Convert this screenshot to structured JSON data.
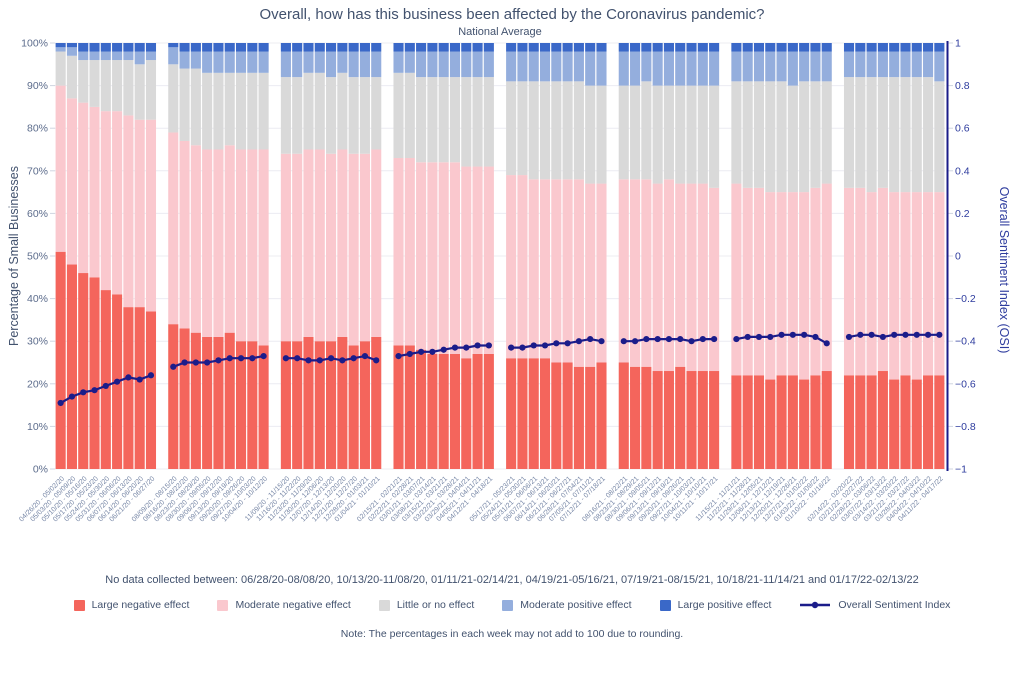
{
  "notes": {
    "no_data": "No data collected between: 06/28/20-08/08/20, 10/13/20-11/08/20, 01/11/21-02/14/21, 04/19/21-05/16/21, 07/19/21-08/15/21, 10/18/21-11/14/21 and 01/17/22-02/13/22",
    "rounding": "Note: The percentages in each week may not add to 100 due to rounding."
  },
  "chart_data": {
    "type": "bar",
    "stacked": true,
    "title": "Overall, how has this business been affected by the Coronavirus pandemic?",
    "subtitle": "National Average",
    "ylabel_left": "Percentage of Small Businesses",
    "ylabel_right": "Overall Sentiment Index (OSI)",
    "y_left": {
      "min": 0,
      "max": 100,
      "step": 10,
      "format": "percent"
    },
    "y_right": {
      "min": -1,
      "max": 1,
      "step": 0.2
    },
    "group_size": 9,
    "grid": true,
    "legend_position": "bottom",
    "categories": [
      "04/26/20 - 05/02/20",
      "05/03/20 - 05/09/20",
      "05/10/20 - 05/16/20",
      "05/17/20 - 05/23/20",
      "05/24/20 - 05/30/20",
      "05/31/20 - 06/06/20",
      "06/07/20 - 06/13/20",
      "06/14/20 - 06/20/20",
      "06/21/20 - 06/27/20",
      "08/09/20 - 08/15/20",
      "08/16/20 - 08/22/20",
      "08/23/20 - 08/29/20",
      "08/30/20 - 09/05/20",
      "09/06/20 - 09/12/20",
      "09/13/20 - 09/19/20",
      "09/20/20 - 09/26/20",
      "09/27/20 - 10/03/20",
      "10/04/20 - 10/12/20",
      "11/09/20 - 11/15/20",
      "11/16/20 - 11/22/20",
      "11/23/20 - 11/29/20",
      "11/30/20 - 12/06/20",
      "12/07/20 - 12/13/20",
      "12/14/20 - 12/20/20",
      "12/21/20 - 12/27/20",
      "12/28/20 - 01/03/21",
      "01/04/21 - 01/10/21",
      "02/15/21 - 02/21/21",
      "02/22/21 - 02/28/21",
      "03/01/21 - 03/07/21",
      "03/08/21 - 03/14/21",
      "03/15/21 - 03/21/21",
      "03/22/21 - 03/28/21",
      "03/29/21 - 04/04/21",
      "04/05/21 - 04/11/21",
      "04/12/21 - 04/18/21",
      "05/17/21 - 05/23/21",
      "05/24/21 - 05/30/21",
      "05/31/21 - 06/06/21",
      "06/07/21 - 06/13/21",
      "06/14/21 - 06/20/21",
      "06/21/21 - 06/27/21",
      "06/28/21 - 07/04/21",
      "07/05/21 - 07/11/21",
      "07/12/21 - 07/18/21",
      "08/16/21 - 08/22/21",
      "08/23/21 - 08/29/21",
      "08/30/21 - 09/05/21",
      "09/06/21 - 09/12/21",
      "09/13/21 - 09/19/21",
      "09/20/21 - 09/26/21",
      "09/27/21 - 10/03/21",
      "10/04/21 - 10/10/21",
      "10/11/21 - 10/17/21",
      "11/15/21 - 11/21/21",
      "11/22/21 - 11/28/21",
      "11/29/21 - 12/05/21",
      "12/06/21 - 12/12/21",
      "12/13/21 - 12/19/21",
      "12/20/21 - 12/26/21",
      "12/27/21 - 01/02/22",
      "01/03/22 - 01/09/22",
      "01/10/22 - 01/16/22",
      "02/14/22 - 02/20/22",
      "02/21/22 - 02/27/22",
      "02/28/22 - 03/06/22",
      "03/07/22 - 03/13/22",
      "03/14/22 - 03/20/22",
      "03/21/22 - 03/27/22",
      "03/28/22 - 04/03/22",
      "04/04/22 - 04/10/22",
      "04/11/22 - 04/17/22"
    ],
    "series": [
      {
        "name": "Large negative effect",
        "color": "#f4655c",
        "values": [
          51,
          48,
          46,
          45,
          42,
          41,
          38,
          38,
          37,
          34,
          33,
          32,
          31,
          31,
          32,
          30,
          30,
          29,
          30,
          30,
          31,
          30,
          30,
          31,
          29,
          30,
          31,
          29,
          29,
          28,
          27,
          27,
          27,
          26,
          27,
          27,
          26,
          26,
          26,
          26,
          25,
          25,
          24,
          24,
          25,
          25,
          24,
          24,
          23,
          23,
          24,
          23,
          23,
          23,
          22,
          22,
          22,
          21,
          22,
          22,
          21,
          22,
          23,
          22,
          22,
          22,
          23,
          21,
          22,
          21,
          22,
          22
        ]
      },
      {
        "name": "Moderate negative effect",
        "color": "#fac8ce",
        "values": [
          39,
          39,
          40,
          40,
          42,
          43,
          45,
          44,
          45,
          45,
          44,
          44,
          44,
          44,
          44,
          45,
          45,
          46,
          44,
          44,
          44,
          45,
          44,
          44,
          45,
          44,
          44,
          44,
          44,
          44,
          45,
          45,
          45,
          45,
          44,
          44,
          43,
          43,
          42,
          42,
          43,
          43,
          44,
          43,
          42,
          43,
          44,
          44,
          44,
          45,
          43,
          44,
          44,
          43,
          45,
          44,
          44,
          44,
          43,
          43,
          44,
          44,
          44,
          44,
          44,
          43,
          43,
          44,
          43,
          44,
          43,
          43
        ]
      },
      {
        "name": "Little or no effect",
        "color": "#d9d9d9",
        "values": [
          8,
          10,
          10,
          11,
          12,
          12,
          13,
          13,
          14,
          16,
          17,
          18,
          18,
          18,
          17,
          18,
          18,
          18,
          18,
          18,
          18,
          18,
          18,
          18,
          18,
          18,
          17,
          20,
          20,
          20,
          20,
          20,
          20,
          21,
          21,
          21,
          22,
          22,
          23,
          23,
          23,
          23,
          23,
          23,
          23,
          22,
          22,
          23,
          23,
          22,
          23,
          23,
          23,
          24,
          24,
          25,
          25,
          26,
          26,
          25,
          26,
          25,
          24,
          26,
          26,
          27,
          26,
          27,
          27,
          27,
          27,
          26
        ]
      },
      {
        "name": "Moderate positive effect",
        "color": "#94aedd",
        "values": [
          1,
          2,
          2,
          2,
          2,
          2,
          2,
          3,
          2,
          4,
          4,
          4,
          5,
          5,
          5,
          5,
          5,
          5,
          6,
          6,
          5,
          5,
          6,
          5,
          6,
          6,
          6,
          5,
          5,
          6,
          6,
          6,
          6,
          6,
          6,
          6,
          7,
          7,
          7,
          7,
          7,
          7,
          7,
          8,
          8,
          8,
          8,
          7,
          8,
          8,
          8,
          8,
          8,
          8,
          7,
          7,
          7,
          7,
          7,
          8,
          7,
          7,
          7,
          6,
          6,
          6,
          6,
          6,
          6,
          6,
          6,
          7
        ]
      },
      {
        "name": "Large positive effect",
        "color": "#3a68c8",
        "values": [
          1,
          1,
          2,
          2,
          2,
          2,
          2,
          2,
          2,
          1,
          2,
          2,
          2,
          2,
          2,
          2,
          2,
          2,
          2,
          2,
          2,
          2,
          2,
          2,
          2,
          2,
          2,
          2,
          2,
          2,
          2,
          2,
          2,
          2,
          2,
          2,
          2,
          2,
          2,
          2,
          2,
          2,
          2,
          2,
          2,
          2,
          2,
          2,
          2,
          2,
          2,
          2,
          2,
          2,
          2,
          2,
          2,
          2,
          2,
          2,
          2,
          2,
          2,
          2,
          2,
          2,
          2,
          2,
          2,
          2,
          2,
          2
        ]
      }
    ],
    "line_series": {
      "name": "Overall Sentiment Index",
      "color": "#1b1c8a",
      "axis": "right",
      "values": [
        -0.69,
        -0.66,
        -0.64,
        -0.63,
        -0.61,
        -0.59,
        -0.57,
        -0.58,
        -0.56,
        -0.52,
        -0.5,
        -0.5,
        -0.5,
        -0.49,
        -0.48,
        -0.48,
        -0.48,
        -0.47,
        -0.48,
        -0.48,
        -0.49,
        -0.49,
        -0.48,
        -0.49,
        -0.48,
        -0.47,
        -0.49,
        -0.47,
        -0.46,
        -0.45,
        -0.45,
        -0.44,
        -0.43,
        -0.43,
        -0.42,
        -0.42,
        -0.43,
        -0.43,
        -0.42,
        -0.42,
        -0.41,
        -0.41,
        -0.4,
        -0.39,
        -0.4,
        -0.4,
        -0.4,
        -0.39,
        -0.39,
        -0.39,
        -0.39,
        -0.4,
        -0.39,
        -0.39,
        -0.39,
        -0.38,
        -0.38,
        -0.38,
        -0.37,
        -0.37,
        -0.37,
        -0.38,
        -0.41,
        -0.38,
        -0.37,
        -0.37,
        -0.38,
        -0.37,
        -0.37,
        -0.37,
        -0.37,
        -0.37
      ]
    }
  }
}
